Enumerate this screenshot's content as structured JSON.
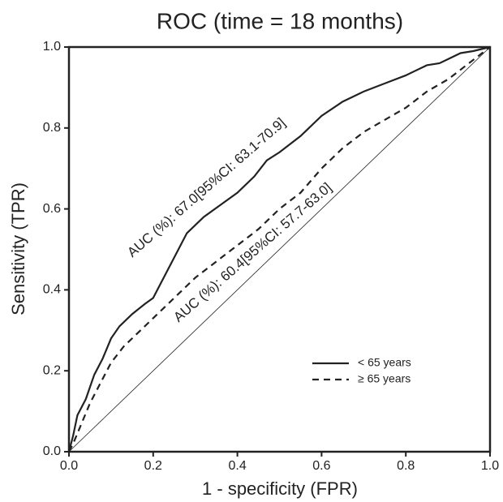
{
  "chart_data": {
    "type": "line",
    "title": "ROC (time = 18 months)",
    "x_label": "1 - specificity (FPR)",
    "y_label": "Sensitivity (TPR)",
    "xlim": [
      0,
      1
    ],
    "ylim": [
      0,
      1
    ],
    "xticks": [
      {
        "value": 0,
        "label": "0.0"
      },
      0.2,
      0.4,
      0.6,
      0.8,
      {
        "value": 1,
        "label": "1.0"
      }
    ],
    "yticks": [
      {
        "value": 0,
        "label": "0.0"
      },
      0.2,
      0.4,
      0.6,
      0.8,
      {
        "value": 1,
        "label": "1.0"
      }
    ],
    "legend": "lower right",
    "annotations": [
      "AUC (%): 67.0[95%CI: 63.1-70.9]",
      "AUC (%): 60.4[95%CI: 57.7-63.0]"
    ],
    "series": [
      {
        "name": "< 65 years",
        "color": "#222222",
        "dash": "solid",
        "x": [
          0,
          0.01,
          0.02,
          0.04,
          0.06,
          0.08,
          0.1,
          0.12,
          0.15,
          0.18,
          0.2,
          0.22,
          0.25,
          0.28,
          0.32,
          0.36,
          0.4,
          0.44,
          0.47,
          0.5,
          0.55,
          0.6,
          0.65,
          0.7,
          0.75,
          0.8,
          0.82,
          0.85,
          0.88,
          0.9,
          0.93,
          0.96,
          1
        ],
        "values": [
          0,
          0.04,
          0.09,
          0.13,
          0.19,
          0.23,
          0.28,
          0.31,
          0.34,
          0.365,
          0.38,
          0.42,
          0.48,
          0.54,
          0.58,
          0.61,
          0.64,
          0.68,
          0.72,
          0.74,
          0.78,
          0.83,
          0.865,
          0.89,
          0.91,
          0.93,
          0.94,
          0.955,
          0.96,
          0.97,
          0.985,
          0.99,
          1
        ]
      },
      {
        "name": "≥ 65 years",
        "color": "#222222",
        "dash": "dashed",
        "x": [
          0,
          0.01,
          0.03,
          0.05,
          0.08,
          0.1,
          0.13,
          0.16,
          0.2,
          0.25,
          0.3,
          0.35,
          0.4,
          0.45,
          0.5,
          0.55,
          0.6,
          0.65,
          0.7,
          0.75,
          0.8,
          0.85,
          0.9,
          0.95,
          1
        ],
        "values": [
          0,
          0.02,
          0.07,
          0.12,
          0.18,
          0.22,
          0.26,
          0.29,
          0.33,
          0.38,
          0.43,
          0.47,
          0.51,
          0.55,
          0.6,
          0.64,
          0.7,
          0.75,
          0.79,
          0.82,
          0.85,
          0.89,
          0.92,
          0.96,
          1
        ]
      }
    ]
  }
}
